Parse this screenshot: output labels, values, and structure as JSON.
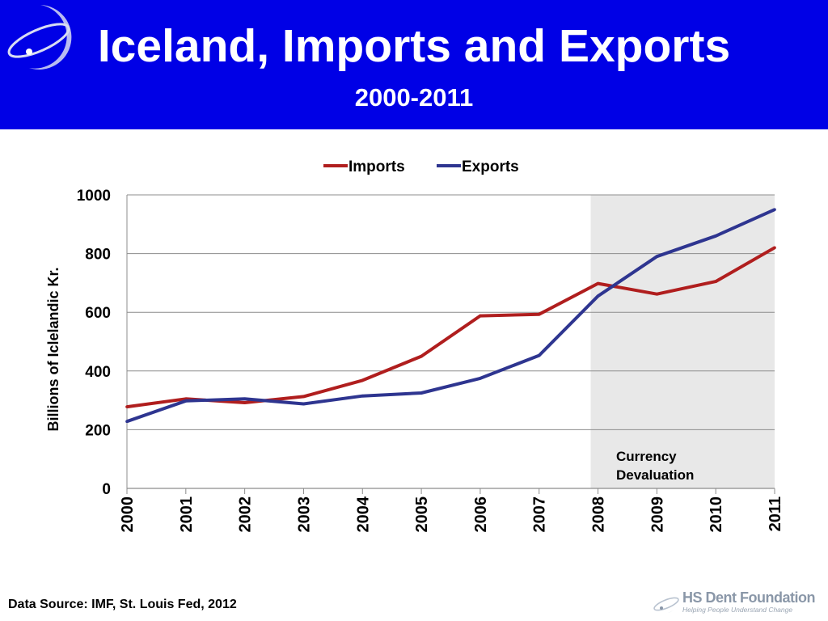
{
  "header": {
    "title": "Iceland, Imports and Exports",
    "subtitle": "2000-2011"
  },
  "footer": {
    "source": "Data Source: IMF, St. Louis Fed, 2012",
    "brand_name": "HS Dent Foundation",
    "brand_tagline": "Helping People Understand Change"
  },
  "colors": {
    "header_bg": "#0000e6",
    "imports": "#b01e1e",
    "exports": "#2e3590",
    "shade": "#e8e8e8",
    "grid": "#8c8c8c"
  },
  "chart_data": {
    "type": "line",
    "x": [
      "2000",
      "2001",
      "2002",
      "2003",
      "2004",
      "2005",
      "2006",
      "2007",
      "2008",
      "2009",
      "2010",
      "2011"
    ],
    "series": [
      {
        "name": "Imports",
        "values": [
          278,
          305,
          292,
          313,
          368,
          450,
          588,
          593,
          698,
          662,
          705,
          820
        ]
      },
      {
        "name": "Exports",
        "values": [
          228,
          298,
          305,
          288,
          315,
          325,
          375,
          453,
          655,
          790,
          860,
          950
        ]
      }
    ],
    "ylabel": "Billions of Iclelandic Kr.",
    "xlabel": "",
    "ylim": [
      0,
      1000
    ],
    "yticks": [
      "0",
      "200",
      "400",
      "600",
      "800",
      "1000"
    ],
    "grid": true,
    "legend_position": "top",
    "shaded_region": {
      "from": "2008",
      "to": "2011",
      "label_line1": "Currency",
      "label_line2": "Devaluation"
    }
  }
}
